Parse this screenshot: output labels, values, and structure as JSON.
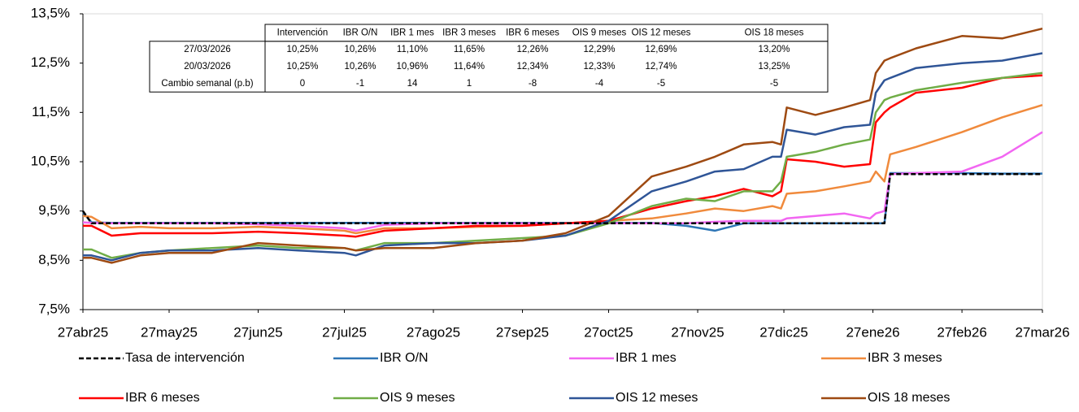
{
  "chart_data": {
    "type": "line",
    "x": [
      0,
      3,
      10,
      20,
      30,
      45,
      61,
      75,
      91,
      95,
      105,
      122,
      137,
      153,
      168,
      183,
      198,
      210,
      220,
      230,
      240,
      243,
      245,
      255,
      265,
      274,
      276,
      279,
      281,
      290,
      306,
      320,
      334
    ],
    "xlim": [
      0,
      334
    ],
    "xticks": [
      {
        "value": 0,
        "label": "27abr25"
      },
      {
        "value": 30,
        "label": "27may25"
      },
      {
        "value": 61,
        "label": "27jun25"
      },
      {
        "value": 91,
        "label": "27jul25"
      },
      {
        "value": 122,
        "label": "27ago25"
      },
      {
        "value": 153,
        "label": "27sep25"
      },
      {
        "value": 183,
        "label": "27oct25"
      },
      {
        "value": 214,
        "label": "27nov25"
      },
      {
        "value": 244,
        "label": "27dic25"
      },
      {
        "value": 275,
        "label": "27ene26"
      },
      {
        "value": 306,
        "label": "27feb26"
      },
      {
        "value": 334,
        "label": "27mar26"
      }
    ],
    "ylim": [
      7.5,
      13.5
    ],
    "yticks": [
      {
        "value": 7.5,
        "label": "7,5%"
      },
      {
        "value": 8.5,
        "label": "8,5%"
      },
      {
        "value": 9.5,
        "label": "9,5%"
      },
      {
        "value": 10.5,
        "label": "10,5%"
      },
      {
        "value": 11.5,
        "label": "11,5%"
      },
      {
        "value": 12.5,
        "label": "12,5%"
      },
      {
        "value": 13.5,
        "label": "13,5%"
      }
    ],
    "grid": false,
    "legend": "bottom",
    "series": [
      {
        "name": "Tasa de intervención",
        "color": "#000000",
        "linestyle": "dashed",
        "values": [
          9.5,
          9.25,
          9.25,
          9.25,
          9.25,
          9.25,
          9.25,
          9.25,
          9.25,
          9.25,
          9.25,
          9.25,
          9.25,
          9.25,
          9.25,
          9.25,
          9.25,
          9.25,
          9.25,
          9.25,
          9.25,
          9.25,
          9.25,
          9.25,
          9.25,
          9.25,
          9.25,
          9.25,
          10.25,
          10.25,
          10.25,
          10.25,
          10.25
        ]
      },
      {
        "name": "IBR O/N",
        "color": "#2e75b6",
        "linestyle": "solid",
        "values": [
          9.47,
          9.27,
          9.26,
          9.26,
          9.26,
          9.26,
          9.26,
          9.26,
          9.26,
          9.26,
          9.26,
          9.26,
          9.26,
          9.26,
          9.26,
          9.26,
          9.26,
          9.2,
          9.1,
          9.25,
          9.25,
          9.25,
          9.25,
          9.25,
          9.25,
          9.25,
          9.25,
          9.25,
          10.27,
          10.27,
          10.27,
          10.26,
          10.26
        ]
      },
      {
        "name": "IBR 1 mes",
        "color": "#f266f2",
        "linestyle": "solid",
        "values": [
          9.27,
          9.26,
          9.25,
          9.25,
          9.25,
          9.25,
          9.23,
          9.2,
          9.15,
          9.1,
          9.22,
          9.25,
          9.25,
          9.25,
          9.25,
          9.25,
          9.25,
          9.25,
          9.28,
          9.3,
          9.3,
          9.3,
          9.35,
          9.4,
          9.45,
          9.35,
          9.45,
          9.5,
          10.25,
          10.27,
          10.3,
          10.6,
          11.1
        ]
      },
      {
        "name": "IBR 3 meses",
        "color": "#f08a3c",
        "linestyle": "solid",
        "values": [
          9.4,
          9.38,
          9.15,
          9.18,
          9.15,
          9.15,
          9.18,
          9.15,
          9.1,
          9.05,
          9.15,
          9.15,
          9.18,
          9.2,
          9.25,
          9.3,
          9.35,
          9.45,
          9.55,
          9.5,
          9.6,
          9.55,
          9.85,
          9.9,
          10.0,
          10.1,
          10.3,
          10.1,
          10.65,
          10.8,
          11.1,
          11.4,
          11.65
        ]
      },
      {
        "name": "IBR 6 meses",
        "color": "#ff0000",
        "linestyle": "solid",
        "values": [
          9.2,
          9.2,
          9.0,
          9.05,
          9.05,
          9.05,
          9.08,
          9.05,
          9.0,
          8.98,
          9.1,
          9.15,
          9.2,
          9.2,
          9.25,
          9.3,
          9.55,
          9.7,
          9.8,
          9.95,
          9.8,
          9.9,
          10.55,
          10.5,
          10.4,
          10.45,
          11.3,
          11.5,
          11.6,
          11.9,
          12.0,
          12.2,
          12.25
        ]
      },
      {
        "name": "OIS 9 meses",
        "color": "#70ad47",
        "linestyle": "solid",
        "values": [
          8.72,
          8.72,
          8.55,
          8.65,
          8.7,
          8.75,
          8.8,
          8.75,
          8.75,
          8.7,
          8.85,
          8.85,
          8.9,
          8.95,
          9.0,
          9.25,
          9.6,
          9.75,
          9.7,
          9.9,
          9.9,
          10.1,
          10.6,
          10.7,
          10.85,
          10.95,
          11.5,
          11.75,
          11.8,
          11.95,
          12.1,
          12.2,
          12.3
        ]
      },
      {
        "name": "OIS 12 meses",
        "color": "#2f5597",
        "linestyle": "solid",
        "values": [
          8.6,
          8.6,
          8.5,
          8.65,
          8.7,
          8.7,
          8.75,
          8.7,
          8.65,
          8.6,
          8.8,
          8.85,
          8.85,
          8.9,
          9.0,
          9.3,
          9.9,
          10.1,
          10.3,
          10.35,
          10.6,
          10.6,
          11.15,
          11.05,
          11.2,
          11.25,
          11.9,
          12.15,
          12.2,
          12.4,
          12.5,
          12.55,
          12.7
        ]
      },
      {
        "name": "OIS 18 meses",
        "color": "#9e4a12",
        "linestyle": "solid",
        "values": [
          8.55,
          8.55,
          8.45,
          8.6,
          8.65,
          8.65,
          8.85,
          8.8,
          8.75,
          8.7,
          8.75,
          8.75,
          8.85,
          8.9,
          9.05,
          9.4,
          10.2,
          10.4,
          10.6,
          10.85,
          10.9,
          10.85,
          11.6,
          11.45,
          11.6,
          11.75,
          12.3,
          12.55,
          12.6,
          12.8,
          13.05,
          13.0,
          13.2
        ]
      }
    ],
    "table": {
      "columns": [
        "Intervención",
        "IBR O/N",
        "IBR 1 mes",
        "IBR 3 meses",
        "IBR 6 meses",
        "OIS 9 meses",
        "OIS 12 meses",
        "OIS 18 meses"
      ],
      "rows": [
        {
          "label": "27/03/2026",
          "cells": [
            "10,25%",
            "10,26%",
            "11,10%",
            "11,65%",
            "12,26%",
            "12,29%",
            "12,69%",
            "13,20%"
          ]
        },
        {
          "label": "20/03/2026",
          "cells": [
            "10,25%",
            "10,26%",
            "10,96%",
            "11,64%",
            "12,34%",
            "12,33%",
            "12,74%",
            "13,25%"
          ]
        },
        {
          "label": "Cambio semanal (p.b)",
          "cells": [
            "0",
            "-1",
            "14",
            "1",
            "-8",
            "-4",
            "-5",
            "-5"
          ]
        }
      ]
    }
  }
}
